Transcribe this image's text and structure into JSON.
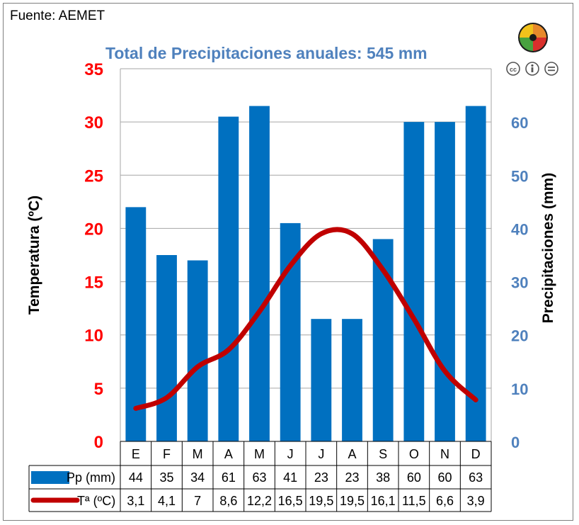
{
  "header": {
    "source": "Fuente: AEMET"
  },
  "chart_data": {
    "type": "bar+line",
    "title": "Total de Precipitaciones anuales: 545 mm",
    "categories": [
      "E",
      "F",
      "M",
      "A",
      "M",
      "J",
      "J",
      "A",
      "S",
      "O",
      "N",
      "D"
    ],
    "left_axis": {
      "label": "Temperatura (ºC)",
      "range": [
        0,
        35
      ],
      "ticks": [
        0,
        5,
        10,
        15,
        20,
        25,
        30,
        35
      ],
      "color": "#ff0000"
    },
    "right_axis": {
      "label": "Precipitaciones (mm)",
      "range": [
        0,
        70
      ],
      "ticks": [
        0,
        10,
        20,
        30,
        40,
        50,
        60
      ],
      "color": "#4f81bd"
    },
    "grid": true,
    "series": [
      {
        "name": "Pp (mm)",
        "kind": "bar",
        "axis": "right",
        "color": "#0070c0",
        "values": [
          44,
          35,
          34,
          61,
          63,
          41,
          23,
          23,
          38,
          60,
          60,
          63
        ]
      },
      {
        "name": "Tª (ºC)",
        "kind": "line",
        "axis": "left",
        "color": "#c00000",
        "values": [
          3.1,
          4.1,
          7,
          8.6,
          12.2,
          16.5,
          19.5,
          19.5,
          16.1,
          11.5,
          6.6,
          3.9
        ]
      }
    ],
    "table": {
      "rows": [
        {
          "label": "Pp (mm)",
          "cells": [
            "44",
            "35",
            "34",
            "61",
            "63",
            "41",
            "23",
            "23",
            "38",
            "60",
            "60",
            "63"
          ]
        },
        {
          "label": "Tª (ºC)",
          "cells": [
            "3,1",
            "4,1",
            "7",
            "8,6",
            "12,2",
            "16,5",
            "19,5",
            "19,5",
            "16,1",
            "11,5",
            "6,6",
            "3,9"
          ]
        }
      ]
    }
  }
}
